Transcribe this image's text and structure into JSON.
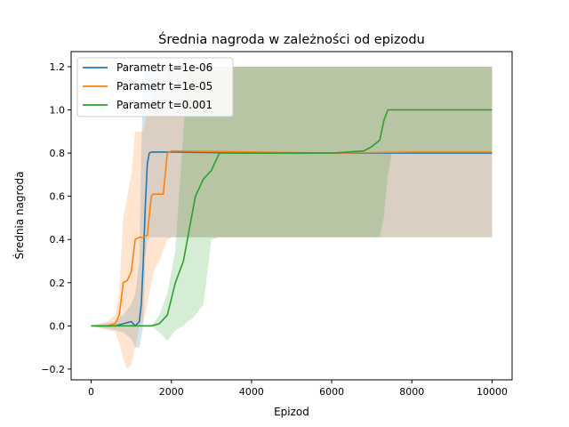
{
  "chart_data": {
    "type": "line",
    "title": "Średnia nagroda w zależności od epizodu",
    "xlabel": "Epizod",
    "ylabel": "Średnia nagroda",
    "xlim": [
      -500,
      10500
    ],
    "ylim": [
      -0.25,
      1.27
    ],
    "xticks": [
      0,
      2000,
      4000,
      6000,
      8000,
      10000
    ],
    "xtick_labels": [
      "0",
      "2000",
      "4000",
      "6000",
      "8000",
      "10000"
    ],
    "yticks": [
      -0.2,
      0.0,
      0.2,
      0.4,
      0.6,
      0.8,
      1.0,
      1.2
    ],
    "ytick_labels": [
      "−0.2",
      "0.0",
      "0.2",
      "0.4",
      "0.6",
      "0.8",
      "1.0",
      "1.2"
    ],
    "grid": false,
    "legend_position": "top-left",
    "series": [
      {
        "name": "Parametr t=1e-06",
        "color": "#1f77b4",
        "x": [
          0,
          600,
          800,
          1000,
          1100,
          1200,
          1250,
          1300,
          1350,
          1400,
          1450,
          1500,
          2000,
          4000,
          6000,
          8000,
          10000
        ],
        "y": [
          0.0,
          0.0,
          0.01,
          0.02,
          0.0,
          0.02,
          0.1,
          0.3,
          0.55,
          0.75,
          0.8,
          0.805,
          0.805,
          0.8,
          0.8,
          0.8,
          0.8
        ],
        "band_upper": [
          0.0,
          0.02,
          0.05,
          0.1,
          0.15,
          0.3,
          0.8,
          1.2,
          1.2,
          1.2,
          1.2,
          1.2,
          1.2,
          1.2,
          1.2,
          1.2,
          1.2
        ],
        "band_lower": [
          0.0,
          -0.02,
          -0.03,
          -0.06,
          -0.1,
          -0.1,
          -0.05,
          0.0,
          0.3,
          0.4,
          0.41,
          0.41,
          0.41,
          0.41,
          0.41,
          0.41,
          0.41
        ]
      },
      {
        "name": "Parametr t=1e-05",
        "color": "#ff7f0e",
        "x": [
          0,
          400,
          600,
          700,
          800,
          900,
          1000,
          1100,
          1200,
          1300,
          1400,
          1500,
          1550,
          1700,
          1800,
          1900,
          2000,
          4000,
          6000,
          8000,
          10000
        ],
        "y": [
          0.0,
          0.0,
          0.01,
          0.05,
          0.2,
          0.21,
          0.25,
          0.4,
          0.41,
          0.41,
          0.42,
          0.6,
          0.61,
          0.61,
          0.61,
          0.8,
          0.81,
          0.805,
          0.8,
          0.805,
          0.805
        ],
        "band_upper": [
          0.0,
          0.02,
          0.05,
          0.15,
          0.5,
          0.6,
          0.7,
          0.9,
          0.9,
          0.9,
          1.0,
          1.05,
          1.1,
          1.1,
          1.1,
          1.2,
          1.2,
          1.2,
          1.2,
          1.2,
          1.2
        ],
        "band_lower": [
          0.0,
          -0.02,
          -0.03,
          -0.08,
          -0.15,
          -0.2,
          -0.18,
          -0.1,
          0.0,
          0.02,
          0.1,
          0.2,
          0.25,
          0.3,
          0.35,
          0.4,
          0.41,
          0.41,
          0.41,
          0.41,
          0.41
        ]
      },
      {
        "name": "Parametr t=0.001",
        "color": "#2ca02c",
        "x": [
          0,
          1500,
          1700,
          1900,
          2100,
          2300,
          2400,
          2500,
          2600,
          2800,
          3000,
          3200,
          4000,
          5000,
          6000,
          6800,
          7000,
          7200,
          7300,
          7400,
          7500,
          8000,
          10000
        ],
        "y": [
          0.0,
          0.0,
          0.01,
          0.05,
          0.2,
          0.3,
          0.4,
          0.5,
          0.6,
          0.68,
          0.72,
          0.8,
          0.8,
          0.8,
          0.8,
          0.81,
          0.83,
          0.86,
          0.95,
          1.0,
          1.0,
          1.0,
          1.0
        ],
        "band_upper": [
          0.0,
          0.0,
          0.05,
          0.15,
          0.35,
          0.9,
          1.2,
          1.2,
          1.2,
          1.2,
          1.2,
          1.2,
          1.2,
          1.2,
          1.2,
          1.2,
          1.2,
          1.2,
          1.2,
          1.2,
          1.2,
          1.2,
          1.2
        ],
        "band_lower": [
          0.0,
          0.0,
          -0.03,
          -0.07,
          -0.02,
          0.0,
          0.02,
          0.03,
          0.05,
          0.1,
          0.4,
          0.41,
          0.41,
          0.41,
          0.41,
          0.41,
          0.41,
          0.41,
          0.5,
          0.7,
          0.8,
          0.8,
          0.8
        ]
      }
    ]
  }
}
